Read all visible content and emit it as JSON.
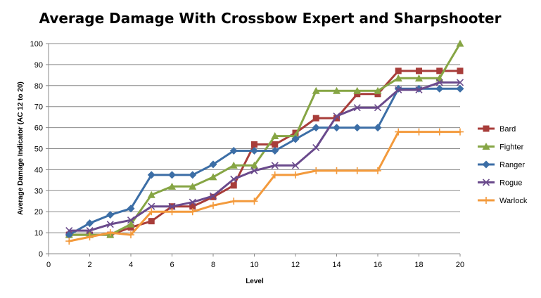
{
  "chart_data": {
    "type": "line",
    "title": "Average Damage With Crossbow Expert and Sharpshooter",
    "xlabel": "Level",
    "ylabel": "Average Damage Indicator (AC 12 to 20)",
    "xlim": [
      0,
      20
    ],
    "ylim": [
      0,
      100
    ],
    "x_ticks": [
      "0",
      "2",
      "4",
      "6",
      "8",
      "10",
      "12",
      "14",
      "16",
      "18",
      "20"
    ],
    "y_ticks": [
      "0",
      "10",
      "20",
      "30",
      "40",
      "50",
      "60",
      "70",
      "80",
      "90",
      "100"
    ],
    "grid": "horizontal",
    "legend_position": "right",
    "x": [
      1,
      2,
      3,
      4,
      5,
      6,
      7,
      8,
      9,
      10,
      11,
      12,
      13,
      14,
      15,
      16,
      17,
      18,
      19,
      20
    ],
    "series": [
      {
        "name": "Bard",
        "color": "#a83d3a",
        "marker": "square",
        "values": [
          9,
          9,
          9,
          12.5,
          15.5,
          22.5,
          22.5,
          27,
          32.5,
          52,
          52,
          57.5,
          64.5,
          64.5,
          76,
          76,
          87,
          87,
          87,
          87
        ]
      },
      {
        "name": "Fighter",
        "color": "#86a544",
        "marker": "triangle",
        "values": [
          9,
          9,
          9,
          14,
          28,
          32,
          32,
          36.5,
          42,
          42,
          56,
          56,
          77.5,
          77.5,
          77.5,
          77.5,
          83.5,
          83.5,
          83.5,
          100
        ]
      },
      {
        "name": "Ranger",
        "color": "#3c6ea6",
        "marker": "diamond",
        "values": [
          9,
          14.5,
          18.5,
          21.5,
          37.5,
          37.5,
          37.5,
          42.5,
          49,
          49,
          49,
          54.5,
          60,
          60,
          60,
          60,
          78.5,
          78.5,
          78.5,
          78.5
        ]
      },
      {
        "name": "Rogue",
        "color": "#6a4a8c",
        "marker": "x",
        "values": [
          11,
          11,
          14,
          16,
          22.5,
          22.5,
          24.5,
          27.5,
          35.5,
          39.5,
          42,
          42,
          50.5,
          65.5,
          69.5,
          69.5,
          78,
          78,
          81.5,
          81.5
        ]
      },
      {
        "name": "Warlock",
        "color": "#f39a3c",
        "marker": "plus",
        "values": [
          6,
          8,
          10,
          9,
          20,
          20,
          20,
          23,
          25,
          25,
          37.5,
          37.5,
          39.5,
          39.5,
          39.5,
          39.5,
          58,
          58,
          58,
          58
        ]
      }
    ]
  }
}
